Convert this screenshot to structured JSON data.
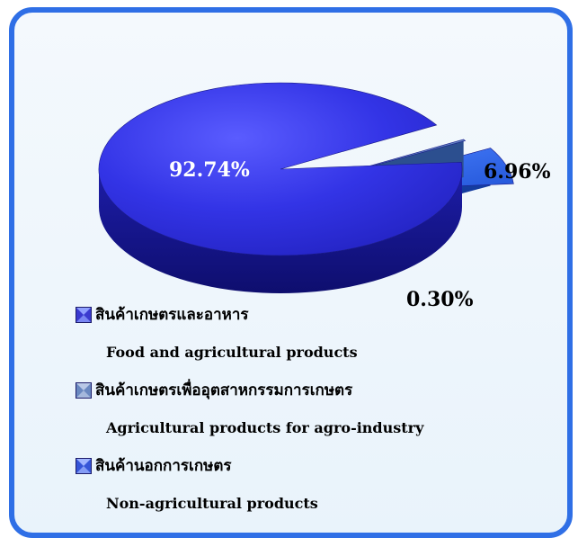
{
  "chart_data": {
    "type": "pie",
    "title": "",
    "slices": [
      {
        "label": "สินค้าเกษตรและอาหาร",
        "label_en": "Food and agricultural products",
        "value": 92.74,
        "value_label": "92.74%",
        "color": "#2a2ad8"
      },
      {
        "label": "สินค้าเกษตรเพื่ออุตสาหกรรมการเกษตร",
        "label_en": "Agricultural products for agro-industry",
        "value": 0.3,
        "value_label": "0.30%",
        "color": "#5f86c2"
      },
      {
        "label": "สินค้านอกการเกษตร",
        "label_en": "Non-agricultural products",
        "value": 6.96,
        "value_label": "6.96%",
        "color": "#2f64ea"
      }
    ],
    "legend_position": "bottom-left",
    "style": "3d-exploded"
  }
}
